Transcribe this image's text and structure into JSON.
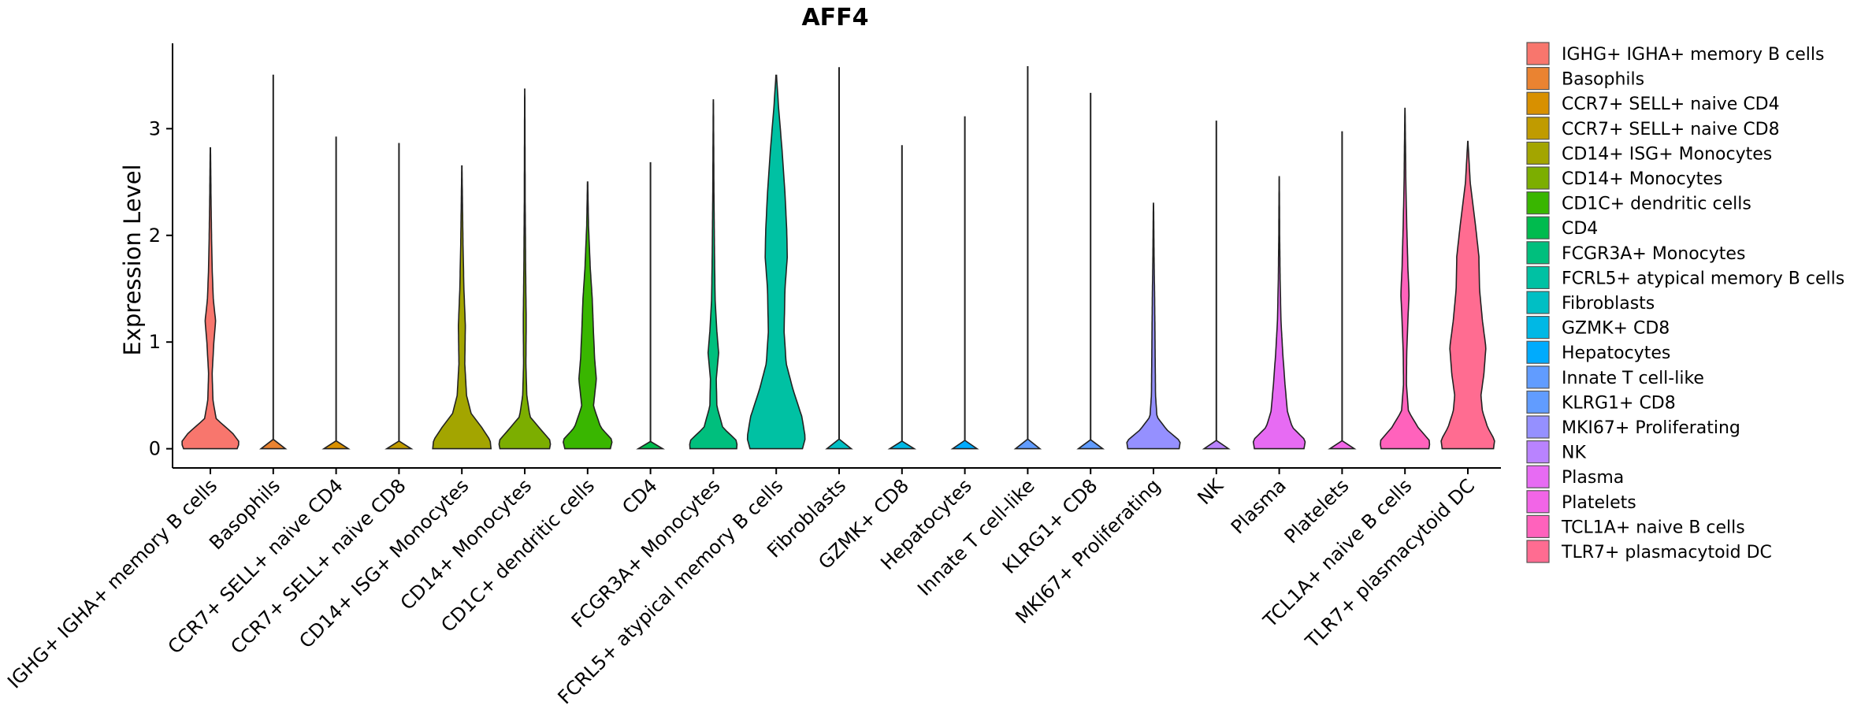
{
  "chart_data": {
    "type": "violin",
    "title": "AFF4",
    "xlabel": "",
    "ylabel": "Expression Level",
    "ylim": [
      -0.18,
      3.8
    ],
    "yticks": [
      0,
      1,
      2,
      3
    ],
    "grid": false,
    "legend_position": "right",
    "categories": [
      {
        "name": " IGHG+ IGHA+ memory B cells",
        "color": "#F8766D",
        "max": 2.82,
        "profile": [
          [
            0,
            0.92
          ],
          [
            0.06,
            1.0
          ],
          [
            0.15,
            0.75
          ],
          [
            0.28,
            0.2
          ],
          [
            0.45,
            0.09
          ],
          [
            0.7,
            0.06
          ],
          [
            1.0,
            0.12
          ],
          [
            1.2,
            0.18
          ],
          [
            1.4,
            0.1
          ],
          [
            1.7,
            0.06
          ],
          [
            2.0,
            0.04
          ],
          [
            2.4,
            0.02
          ],
          [
            2.82,
            0.005
          ]
        ]
      },
      {
        "name": "Basophils",
        "color": "#EA8331",
        "max": 3.5,
        "profile": null
      },
      {
        "name": "CCR7+ SELL+ naive CD4",
        "color": "#D89000",
        "max": 2.92,
        "profile": null
      },
      {
        "name": "CCR7+ SELL+ naive CD8",
        "color": "#C09B00",
        "max": 2.86,
        "profile": null
      },
      {
        "name": "CD14+ ISG+ Monocytes",
        "color": "#A3A500",
        "max": 2.65,
        "profile": [
          [
            0,
            1.0
          ],
          [
            0.08,
            0.97
          ],
          [
            0.2,
            0.68
          ],
          [
            0.33,
            0.32
          ],
          [
            0.5,
            0.16
          ],
          [
            0.8,
            0.1
          ],
          [
            1.15,
            0.12
          ],
          [
            1.5,
            0.07
          ],
          [
            1.9,
            0.04
          ],
          [
            2.3,
            0.02
          ],
          [
            2.65,
            0.005
          ]
        ]
      },
      {
        "name": "CD14+ Monocytes",
        "color": "#7CAE00",
        "max": 3.37,
        "profile": [
          [
            0,
            0.85
          ],
          [
            0.07,
            0.9
          ],
          [
            0.18,
            0.55
          ],
          [
            0.3,
            0.18
          ],
          [
            0.5,
            0.07
          ],
          [
            0.8,
            0.04
          ],
          [
            1.2,
            0.05
          ],
          [
            1.7,
            0.03
          ],
          [
            2.3,
            0.015
          ],
          [
            3.0,
            0.008
          ],
          [
            3.37,
            0.003
          ]
        ]
      },
      {
        "name": "CD1C+ dendritic cells",
        "color": "#39B600",
        "max": 2.5,
        "profile": [
          [
            0,
            0.78
          ],
          [
            0.08,
            0.85
          ],
          [
            0.2,
            0.45
          ],
          [
            0.4,
            0.2
          ],
          [
            0.65,
            0.3
          ],
          [
            0.85,
            0.24
          ],
          [
            1.1,
            0.2
          ],
          [
            1.4,
            0.16
          ],
          [
            1.7,
            0.09
          ],
          [
            2.1,
            0.03
          ],
          [
            2.5,
            0.005
          ]
        ]
      },
      {
        "name": "CD4",
        "color": "#00BB4E",
        "max": 2.68,
        "profile": null
      },
      {
        "name": "FCGR3A+ Monocytes",
        "color": "#00BF7D",
        "max": 3.27,
        "profile": [
          [
            0,
            0.8
          ],
          [
            0.07,
            0.82
          ],
          [
            0.2,
            0.32
          ],
          [
            0.4,
            0.12
          ],
          [
            0.65,
            0.1
          ],
          [
            0.9,
            0.18
          ],
          [
            1.1,
            0.12
          ],
          [
            1.4,
            0.06
          ],
          [
            1.8,
            0.04
          ],
          [
            2.4,
            0.02
          ],
          [
            3.27,
            0.004
          ]
        ]
      },
      {
        "name": "FCRL5+ atypical memory B cells",
        "color": "#00C1A3",
        "max": 3.5,
        "profile": [
          [
            0,
            0.9
          ],
          [
            0.1,
            1.0
          ],
          [
            0.3,
            0.88
          ],
          [
            0.55,
            0.58
          ],
          [
            0.8,
            0.34
          ],
          [
            1.1,
            0.27
          ],
          [
            1.5,
            0.3
          ],
          [
            1.8,
            0.38
          ],
          [
            2.05,
            0.36
          ],
          [
            2.4,
            0.3
          ],
          [
            2.8,
            0.2
          ],
          [
            3.2,
            0.08
          ],
          [
            3.5,
            0.01
          ]
        ]
      },
      {
        "name": "Fibroblasts",
        "color": "#00BFC4",
        "max": 3.57,
        "profile": null
      },
      {
        "name": "GZMK+ CD8",
        "color": "#00B8E5",
        "max": 2.84,
        "profile": null
      },
      {
        "name": "Hepatocytes",
        "color": "#00ABFD",
        "max": 3.11,
        "profile": null
      },
      {
        "name": "Innate T cell-like",
        "color": "#619CFF",
        "max": 3.58,
        "profile": null
      },
      {
        "name": "KLRG1+ CD8",
        "color": "#619CFF",
        "max": 3.33,
        "profile": null
      },
      {
        "name": "MKI67+ Proliferating",
        "color": "#9590FF",
        "max": 2.3,
        "profile": [
          [
            0,
            0.88
          ],
          [
            0.07,
            0.92
          ],
          [
            0.18,
            0.45
          ],
          [
            0.3,
            0.12
          ],
          [
            0.5,
            0.07
          ],
          [
            0.8,
            0.06
          ],
          [
            1.1,
            0.05
          ],
          [
            1.4,
            0.04
          ],
          [
            1.8,
            0.02
          ],
          [
            2.3,
            0.004
          ]
        ]
      },
      {
        "name": "NK",
        "color": "#B983FF",
        "max": 3.07,
        "profile": null
      },
      {
        "name": "Plasma",
        "color": "#E76BF3",
        "max": 2.55,
        "profile": [
          [
            0,
            0.85
          ],
          [
            0.08,
            0.9
          ],
          [
            0.2,
            0.45
          ],
          [
            0.35,
            0.28
          ],
          [
            0.6,
            0.2
          ],
          [
            0.9,
            0.12
          ],
          [
            1.2,
            0.06
          ],
          [
            1.6,
            0.03
          ],
          [
            2.0,
            0.015
          ],
          [
            2.55,
            0.004
          ]
        ]
      },
      {
        "name": "Platelets",
        "color": "#F265E7",
        "max": 2.97,
        "profile": null
      },
      {
        "name": "TCL1A+ naive B cells",
        "color": "#FF62BC",
        "max": 3.19,
        "profile": [
          [
            0,
            0.82
          ],
          [
            0.07,
            0.86
          ],
          [
            0.2,
            0.45
          ],
          [
            0.35,
            0.12
          ],
          [
            0.6,
            0.05
          ],
          [
            0.9,
            0.06
          ],
          [
            1.2,
            0.1
          ],
          [
            1.45,
            0.14
          ],
          [
            1.7,
            0.1
          ],
          [
            2.1,
            0.06
          ],
          [
            2.5,
            0.03
          ],
          [
            2.9,
            0.015
          ],
          [
            3.19,
            0.004
          ]
        ]
      },
      {
        "name": "TLR7+ plasmacytoid DC",
        "color": "#FF6C91",
        "max": 2.88,
        "profile": [
          [
            0,
            0.88
          ],
          [
            0.08,
            0.92
          ],
          [
            0.2,
            0.68
          ],
          [
            0.35,
            0.5
          ],
          [
            0.5,
            0.45
          ],
          [
            0.7,
            0.55
          ],
          [
            0.95,
            0.62
          ],
          [
            1.2,
            0.5
          ],
          [
            1.5,
            0.4
          ],
          [
            1.8,
            0.38
          ],
          [
            2.1,
            0.26
          ],
          [
            2.5,
            0.08
          ],
          [
            2.88,
            0.005
          ]
        ]
      }
    ],
    "legend": [
      {
        "label": " IGHG+ IGHA+ memory B cells",
        "color": "#F8766D"
      },
      {
        "label": "Basophils",
        "color": "#EA8331"
      },
      {
        "label": "CCR7+ SELL+ naive CD4",
        "color": "#D89000"
      },
      {
        "label": "CCR7+ SELL+ naive CD8",
        "color": "#C09B00"
      },
      {
        "label": "CD14+ ISG+ Monocytes",
        "color": "#A3A500"
      },
      {
        "label": "CD14+ Monocytes",
        "color": "#7CAE00"
      },
      {
        "label": "CD1C+ dendritic cells",
        "color": "#39B600"
      },
      {
        "label": "CD4",
        "color": "#00BB4E"
      },
      {
        "label": "FCGR3A+ Monocytes",
        "color": "#00BF7D"
      },
      {
        "label": "FCRL5+ atypical memory B cells",
        "color": "#00C1A3"
      },
      {
        "label": "Fibroblasts",
        "color": "#00BFC4"
      },
      {
        "label": "GZMK+ CD8",
        "color": "#00B8E5"
      },
      {
        "label": "Hepatocytes",
        "color": "#00ABFD"
      },
      {
        "label": "Innate T cell-like",
        "color": "#619CFF"
      },
      {
        "label": "KLRG1+ CD8",
        "color": "#619CFF"
      },
      {
        "label": "MKI67+ Proliferating",
        "color": "#9590FF"
      },
      {
        "label": "NK",
        "color": "#B983FF"
      },
      {
        "label": "Plasma",
        "color": "#E76BF3"
      },
      {
        "label": "Platelets",
        "color": "#F265E7"
      },
      {
        "label": "TCL1A+ naive B cells",
        "color": "#FF62BC"
      },
      {
        "label": "TLR7+ plasmacytoid DC",
        "color": "#FF6C91"
      }
    ]
  }
}
